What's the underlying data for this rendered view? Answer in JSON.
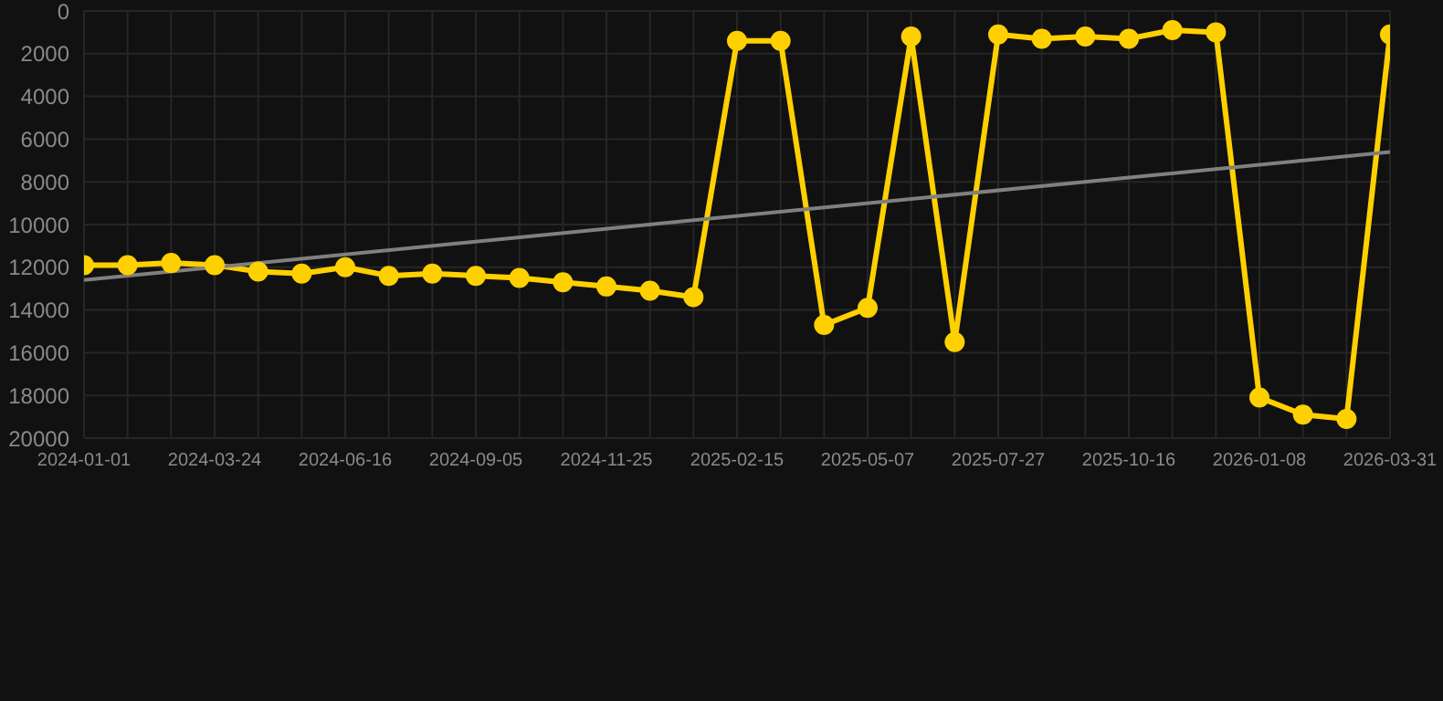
{
  "chart_data": {
    "type": "line",
    "categories": [
      "2024-01-01",
      null,
      null,
      "2024-03-24",
      null,
      null,
      "2024-06-16",
      null,
      null,
      "2024-09-05",
      null,
      null,
      "2024-11-25",
      null,
      null,
      "2025-02-15",
      null,
      null,
      "2025-05-07",
      null,
      null,
      "2025-07-27",
      null,
      null,
      "2025-10-16",
      null,
      null,
      "2026-01-08",
      null,
      null,
      "2026-03-31"
    ],
    "series": [
      {
        "color": "#ffd000",
        "marker": "circle",
        "values": [
          11900,
          11900,
          11800,
          11900,
          12200,
          12300,
          12000,
          12400,
          12300,
          12400,
          12500,
          12700,
          12900,
          13100,
          13400,
          1400,
          1400,
          14700,
          13900,
          1200,
          15500,
          1100,
          1300,
          1200,
          1300,
          900,
          1000,
          18100,
          18900,
          19100,
          1100
        ]
      },
      {
        "type": "line",
        "color": "#808080",
        "marker": "none",
        "values": [
          12600,
          null,
          null,
          null,
          null,
          null,
          null,
          null,
          null,
          null,
          null,
          null,
          null,
          null,
          null,
          null,
          null,
          null,
          null,
          null,
          null,
          null,
          null,
          null,
          null,
          null,
          null,
          null,
          null,
          null,
          6600
        ]
      }
    ],
    "ylim": [
      20000,
      0
    ],
    "yticks": [
      0,
      2000,
      4000,
      6000,
      8000,
      10000,
      12000,
      14000,
      16000,
      18000,
      20000
    ],
    "grid": true
  }
}
